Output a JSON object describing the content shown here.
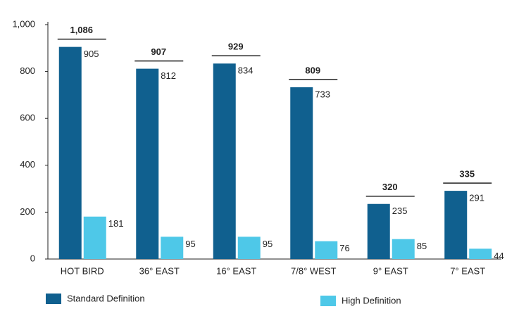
{
  "chart_data": {
    "type": "bar",
    "categories": [
      "HOT BIRD",
      "36° EAST",
      "16° EAST",
      "7/8° WEST",
      "9° EAST",
      "7° EAST"
    ],
    "series": [
      {
        "name": "Standard Definition",
        "color": "#10608f",
        "values": [
          905,
          812,
          834,
          733,
          235,
          291
        ]
      },
      {
        "name": "High Definition",
        "color": "#4ec8e8",
        "values": [
          181,
          95,
          95,
          76,
          85,
          44
        ]
      }
    ],
    "totals": {
      "values": [
        1086,
        907,
        929,
        809,
        320,
        335
      ],
      "value_labels": [
        "1,086",
        "907",
        "929",
        "809",
        "320",
        "335"
      ]
    },
    "ylim": [
      0,
      1000
    ],
    "yticks": [
      0,
      200,
      400,
      600,
      800,
      {
        "value": 1000,
        "label": "1,000"
      }
    ],
    "legend": "bottom"
  }
}
